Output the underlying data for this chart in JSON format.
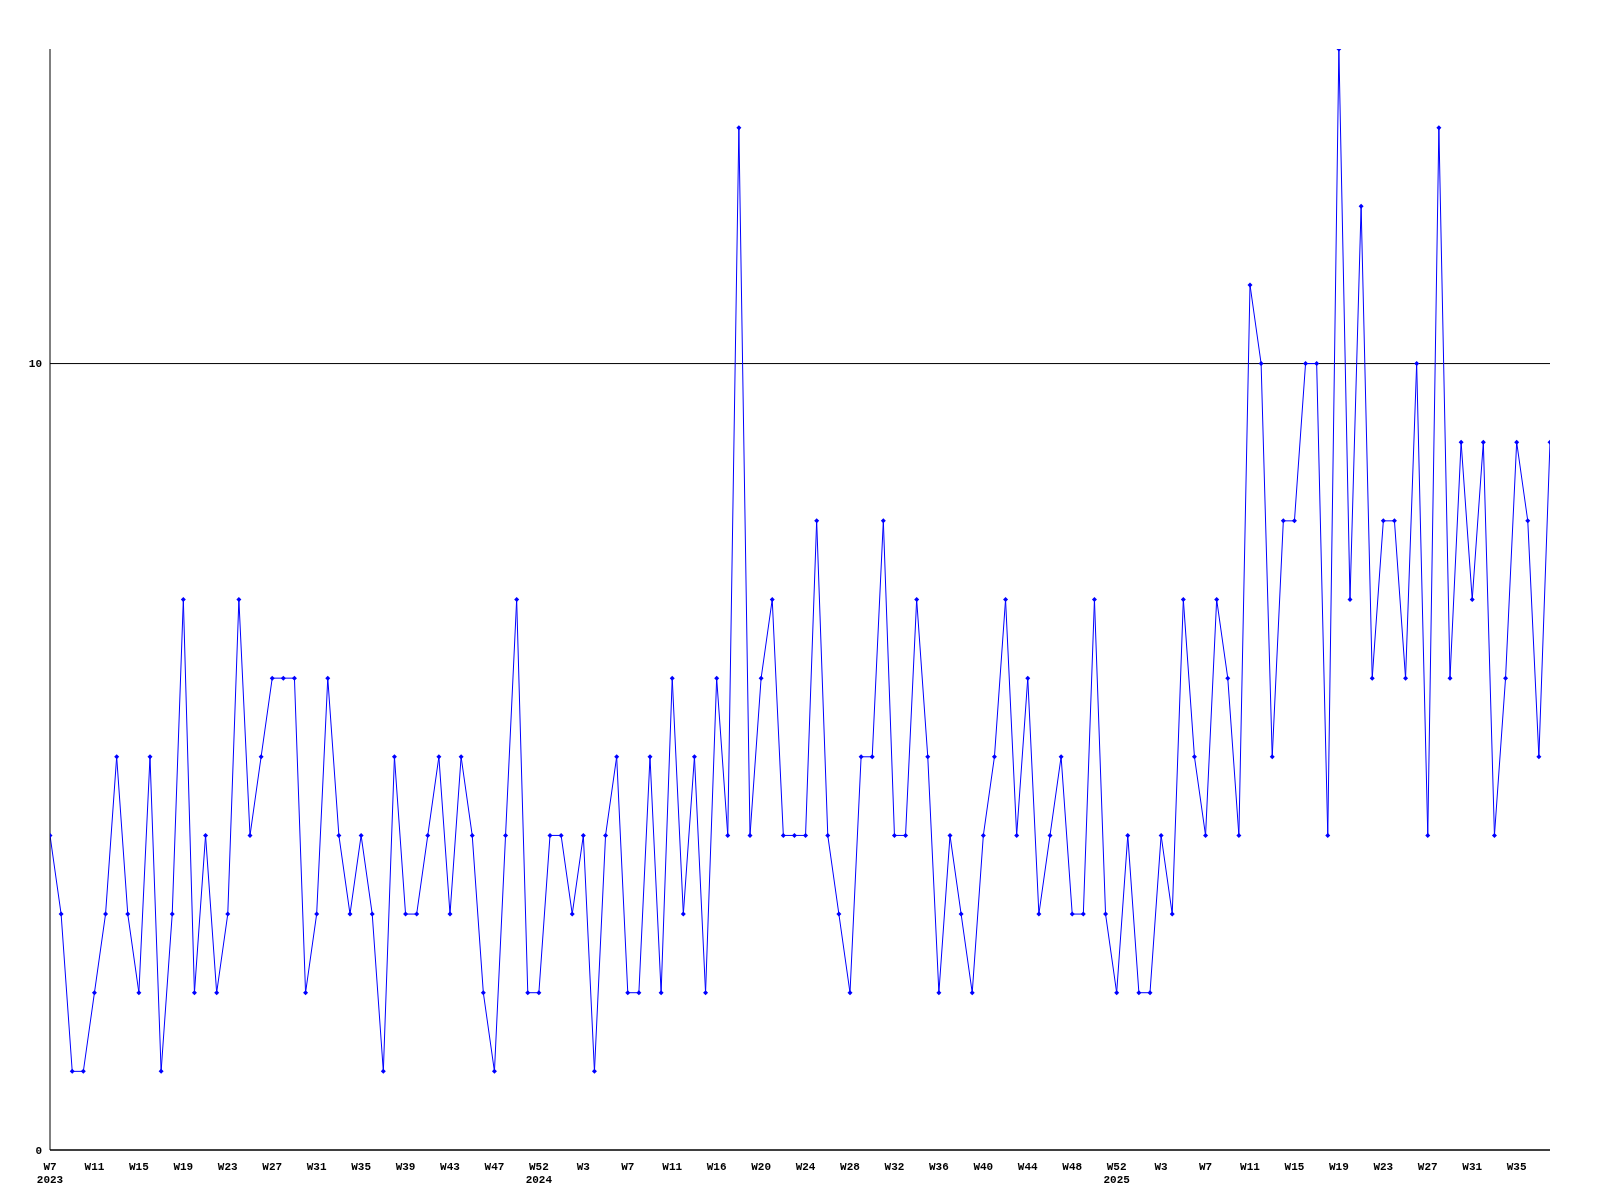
{
  "chart_data": {
    "type": "line",
    "categories": [
      "W7\n2023",
      null,
      null,
      null,
      "W11",
      null,
      null,
      null,
      "W15",
      null,
      null,
      null,
      "W19",
      null,
      null,
      null,
      "W23",
      null,
      null,
      null,
      "W27",
      null,
      null,
      null,
      "W31",
      null,
      null,
      null,
      "W35",
      null,
      null,
      null,
      "W39",
      null,
      null,
      null,
      "W43",
      null,
      null,
      null,
      "W47",
      null,
      null,
      null,
      "W52\n2024",
      null,
      null,
      null,
      "W3",
      null,
      null,
      null,
      "W7",
      null,
      null,
      null,
      "W11",
      null,
      null,
      null,
      "W16",
      null,
      null,
      null,
      "W20",
      null,
      null,
      null,
      "W24",
      null,
      null,
      null,
      "W28",
      null,
      null,
      null,
      "W32",
      null,
      null,
      null,
      "W36",
      null,
      null,
      null,
      "W40",
      null,
      null,
      null,
      "W44",
      null,
      null,
      null,
      "W48",
      null,
      null,
      null,
      "W52\n2025",
      null,
      null,
      null,
      "W3",
      null,
      null,
      null,
      "W7",
      null,
      null,
      null,
      "W11",
      null,
      null,
      null,
      "W15",
      null,
      null,
      null,
      "W19",
      null,
      null,
      null,
      "W23",
      null,
      null,
      null,
      "W27",
      null,
      null,
      null,
      "W31",
      null,
      null,
      null,
      "W35",
      null,
      null,
      null
    ],
    "series": [
      {
        "color": "#0000ff",
        "values": [
          4,
          3,
          1,
          1,
          2,
          3,
          5,
          3,
          2,
          5,
          1,
          3,
          7,
          2,
          4,
          2,
          3,
          7,
          4,
          5,
          6,
          6,
          6,
          2,
          3,
          6,
          4,
          3,
          4,
          3,
          1,
          5,
          3,
          3,
          4,
          5,
          3,
          5,
          4,
          2,
          1,
          4,
          7,
          2,
          2,
          4,
          4,
          3,
          4,
          1,
          4,
          5,
          2,
          2,
          5,
          2,
          6,
          3,
          5,
          2,
          6,
          4,
          13,
          4,
          6,
          7,
          4,
          4,
          4,
          8,
          4,
          3,
          2,
          5,
          5,
          8,
          4,
          4,
          7,
          5,
          2,
          4,
          3,
          2,
          4,
          5,
          7,
          4,
          6,
          3,
          4,
          5,
          3,
          3,
          7,
          3,
          2,
          4,
          2,
          2,
          4,
          3,
          7,
          5,
          4,
          7,
          6,
          4,
          11,
          10,
          5,
          8,
          8,
          10,
          10,
          4,
          14,
          7,
          12,
          6,
          8,
          8,
          6,
          10,
          4,
          13,
          6,
          9,
          7,
          9,
          4,
          6,
          9,
          8,
          5,
          9
        ]
      }
    ],
    "ylim": [
      0,
      14
    ],
    "yticks": [
      0,
      10
    ],
    "grid": "y",
    "marker": "diamond",
    "line_style": "solid"
  }
}
